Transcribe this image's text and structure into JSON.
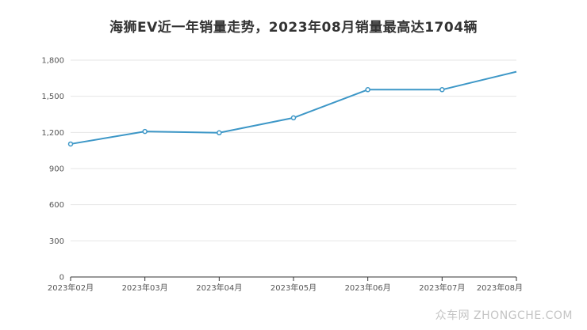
{
  "chart_data": {
    "type": "line",
    "title": "海狮EV近一年销量走势，2023年08月销量最高达1704辆",
    "categories": [
      "2023年02月",
      "2023年03月",
      "2023年04月",
      "2023年05月",
      "2023年06月",
      "2023年07月",
      "2023年08月"
    ],
    "series": [
      {
        "name": "销量",
        "values": [
          1104,
          1208,
          1197,
          1321,
          1555,
          1555,
          1704
        ]
      }
    ],
    "ylim": [
      0,
      1800
    ],
    "yticks": [
      0,
      300,
      600,
      900,
      1200,
      1500,
      1800
    ],
    "ytick_labels": [
      "0",
      "300",
      "600",
      "900",
      "1,200",
      "1,500",
      "1,800"
    ],
    "xlabel": "",
    "ylabel": "",
    "grid": true,
    "line_color": "#3d97c7"
  },
  "watermark": "众车网 ZHONGCHE.COM"
}
